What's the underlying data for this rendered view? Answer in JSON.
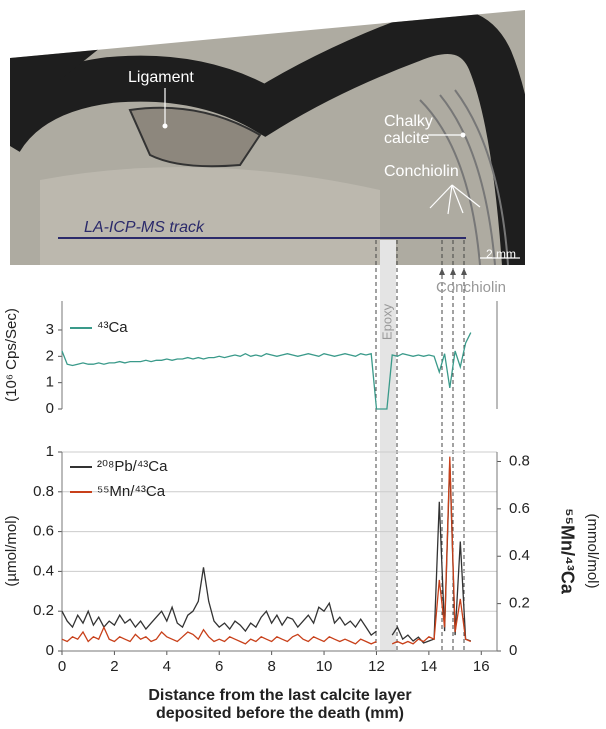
{
  "image": {
    "ligament": "Ligament",
    "chalky": "Chalky",
    "calcite": "calcite",
    "conchiolin": "Conchiolin",
    "track": "LA-ICP-MS track",
    "scale": "2 mm"
  },
  "annotations": {
    "conchiolin": "Conchiolin",
    "epoxy": "Epoxy"
  },
  "chart_data": [
    {
      "type": "line",
      "ylabel": "(10⁶ Cps/Sec)",
      "xlim": [
        0,
        16.6
      ],
      "ylim": [
        0,
        4.1
      ],
      "yticks": [
        0,
        1,
        2,
        3
      ],
      "x": [
        0,
        0.2,
        0.4,
        0.6,
        0.8,
        1,
        1.2,
        1.4,
        1.6,
        1.8,
        2,
        2.2,
        2.4,
        2.6,
        2.8,
        3,
        3.2,
        3.4,
        3.6,
        3.8,
        4,
        4.2,
        4.4,
        4.6,
        4.8,
        5,
        5.2,
        5.4,
        5.6,
        5.8,
        6,
        6.2,
        6.4,
        6.6,
        6.8,
        7,
        7.2,
        7.4,
        7.6,
        7.8,
        8,
        8.2,
        8.4,
        8.6,
        8.8,
        9,
        9.2,
        9.4,
        9.6,
        9.8,
        10,
        10.2,
        10.4,
        10.6,
        10.8,
        11,
        11.2,
        11.4,
        11.6,
        11.8,
        12,
        12.2,
        12.4,
        12.6,
        12.8,
        13,
        13.2,
        13.4,
        13.6,
        13.8,
        14,
        14.2,
        14.4,
        14.6,
        14.8,
        15,
        15.2,
        15.4,
        15.6
      ],
      "series": [
        {
          "name": "⁴³Ca",
          "color": "#3a9a8a",
          "values": [
            2.2,
            1.7,
            1.65,
            1.7,
            1.75,
            1.7,
            1.7,
            1.75,
            1.7,
            1.75,
            1.75,
            1.8,
            1.75,
            1.8,
            1.8,
            1.8,
            1.85,
            1.8,
            1.85,
            1.85,
            1.9,
            1.85,
            1.9,
            1.9,
            1.95,
            1.9,
            1.95,
            1.9,
            1.95,
            1.95,
            2,
            1.95,
            2,
            2.05,
            2,
            2.1,
            2,
            2.05,
            2,
            2.1,
            2.05,
            2,
            2.05,
            2.1,
            2.05,
            2,
            2.05,
            2.1,
            2.05,
            2,
            2.1,
            2.05,
            2,
            2.05,
            2.1,
            2.05,
            2,
            2.1,
            2.05,
            2.1,
            0,
            0,
            0,
            2.05,
            2,
            2.1,
            2.05,
            2,
            2.05,
            2,
            2.05,
            2,
            1.4,
            2.1,
            0.8,
            2.2,
            1.6,
            2.5,
            2.9
          ]
        }
      ]
    },
    {
      "type": "line",
      "ylabel": "(µmol/mol)",
      "y2label": "⁵⁵Mn/⁴³Ca",
      "y2unit": "(mmol/mol)",
      "xlabel": [
        "Distance from the last calcite layer",
        "deposited before the death (mm)"
      ],
      "xlim": [
        0,
        16.6
      ],
      "xticks": [
        0,
        2,
        4,
        6,
        8,
        10,
        12,
        14,
        16
      ],
      "ylim": [
        0,
        1
      ],
      "yticks": [
        0,
        0.2,
        0.4,
        0.6,
        0.8,
        1
      ],
      "y2lim": [
        0,
        0.84
      ],
      "y2ticks": [
        0,
        0.2,
        0.4,
        0.6,
        0.8
      ],
      "grid": true,
      "x": [
        0,
        0.2,
        0.4,
        0.6,
        0.8,
        1,
        1.2,
        1.4,
        1.6,
        1.8,
        2,
        2.2,
        2.4,
        2.6,
        2.8,
        3,
        3.2,
        3.4,
        3.6,
        3.8,
        4,
        4.2,
        4.4,
        4.6,
        4.8,
        5,
        5.2,
        5.4,
        5.6,
        5.8,
        6,
        6.2,
        6.4,
        6.6,
        6.8,
        7,
        7.2,
        7.4,
        7.6,
        7.8,
        8,
        8.2,
        8.4,
        8.6,
        8.8,
        9,
        9.2,
        9.4,
        9.6,
        9.8,
        10,
        10.2,
        10.4,
        10.6,
        10.8,
        11,
        11.2,
        11.4,
        11.6,
        11.8,
        12,
        12.2,
        12.4,
        12.6,
        12.8,
        13,
        13.2,
        13.4,
        13.6,
        13.8,
        14,
        14.2,
        14.4,
        14.6,
        14.8,
        15,
        15.2,
        15.4,
        15.6
      ],
      "series": [
        {
          "name": "²⁰⁸Pb/⁴³Ca",
          "color": "#333333",
          "values": [
            0.2,
            0.15,
            0.12,
            0.18,
            0.14,
            0.2,
            0.13,
            0.17,
            0.12,
            0.15,
            0.13,
            0.18,
            0.14,
            0.16,
            0.12,
            0.15,
            0.11,
            0.14,
            0.17,
            0.2,
            0.15,
            0.22,
            0.14,
            0.12,
            0.18,
            0.2,
            0.25,
            0.42,
            0.25,
            0.15,
            0.12,
            0.14,
            0.11,
            0.15,
            0.13,
            0.1,
            0.14,
            0.12,
            0.17,
            0.2,
            0.14,
            0.18,
            0.13,
            0.17,
            0.16,
            0.12,
            0.15,
            0.18,
            0.14,
            0.22,
            0.2,
            0.24,
            0.14,
            0.17,
            0.13,
            0.15,
            0.12,
            0.16,
            0.12,
            0.08,
            0.1,
            null,
            null,
            0.08,
            0.12,
            0.06,
            0.08,
            0.05,
            0.07,
            0.04,
            0.05,
            0.06,
            0.75,
            0.1,
            0.95,
            0.08,
            0.55,
            0.06,
            0.05
          ]
        },
        {
          "name": "⁵⁵Mn/⁴³Ca",
          "color": "#c8401a",
          "axis": "y2",
          "values": [
            0.05,
            0.04,
            0.06,
            0.05,
            0.08,
            0.04,
            0.06,
            0.05,
            0.1,
            0.05,
            0.04,
            0.06,
            0.05,
            0.04,
            0.07,
            0.05,
            0.06,
            0.04,
            0.05,
            0.08,
            0.06,
            0.05,
            0.04,
            0.06,
            0.08,
            0.07,
            0.05,
            0.09,
            0.06,
            0.04,
            0.05,
            0.04,
            0.06,
            0.05,
            0.04,
            0.03,
            0.05,
            0.04,
            0.06,
            0.05,
            0.04,
            0.06,
            0.05,
            0.04,
            0.06,
            0.07,
            0.05,
            0.04,
            0.06,
            0.05,
            0.04,
            0.06,
            0.05,
            0.04,
            0.05,
            0.04,
            0.03,
            0.05,
            0.04,
            0.03,
            0.04,
            null,
            null,
            0.03,
            0.04,
            0.03,
            0.04,
            0.03,
            0.05,
            0.04,
            0.06,
            0.05,
            0.3,
            0.1,
            0.82,
            0.08,
            0.22,
            0.05,
            0.04
          ]
        }
      ]
    }
  ]
}
